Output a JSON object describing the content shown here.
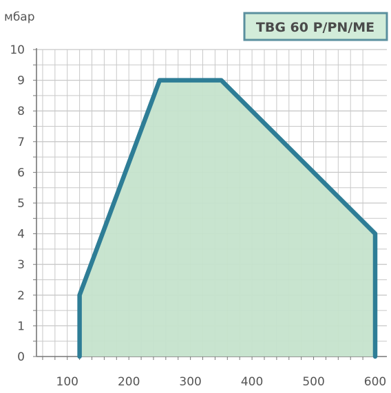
{
  "chart_data": {
    "type": "area",
    "ylabel": "мбар",
    "xlabel": "",
    "legend": "TBG 60 P/PN/ME",
    "legend_position": "top-right",
    "xlim": [
      50,
      600
    ],
    "ylim": [
      0,
      10
    ],
    "x_ticks": [
      100,
      200,
      300,
      400,
      500,
      600
    ],
    "y_ticks": [
      0,
      1,
      2,
      3,
      4,
      5,
      6,
      7,
      8,
      9,
      10
    ],
    "grid": true,
    "series": [
      {
        "name": "TBG 60 P/PN/ME",
        "points": [
          [
            120,
            0
          ],
          [
            120,
            2
          ],
          [
            250,
            9
          ],
          [
            350,
            9
          ],
          [
            600,
            4
          ],
          [
            600,
            0
          ]
        ]
      }
    ],
    "colors": {
      "line": "#2e7d96",
      "fill": "#c5e3cc",
      "grid": "#c8c8c8",
      "legend_bg": "#d2ecd9",
      "legend_border": "#5a8f9e"
    }
  }
}
